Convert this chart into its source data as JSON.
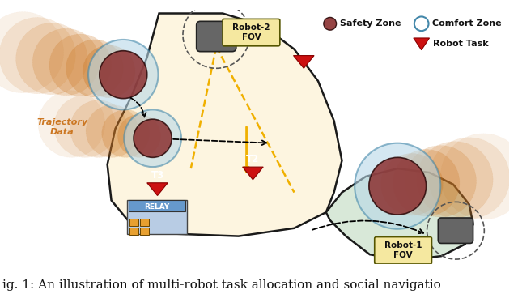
{
  "fig_width": 6.4,
  "fig_height": 3.63,
  "dpi": 100,
  "bg_color": "#ffffff",
  "main_area_color": "#fdf5e0",
  "secondary_area_color": "#d8e8d8",
  "border_color": "#1a1a1a",
  "safety_zone_color": "#8b3030",
  "comfort_zone_color": "#b8d8e8",
  "trajectory_color": "#cc7722",
  "task_marker_color": "#cc1111",
  "fov_arrow_color": "#f0b000",
  "caption": "ig. 1: An illustration of multi-robot task allocation and social navigatio",
  "caption_fontsize": 11,
  "legend_safety_label": "Safety Zone",
  "legend_comfort_label": "Comfort Zone",
  "legend_task_label": "Robot Task",
  "robot2_label": "Robot-2\nFOV",
  "robot1_label": "Robot-1\nFOV",
  "trajectory_label": "Trajectory\nData",
  "relay_label": "RELAY"
}
